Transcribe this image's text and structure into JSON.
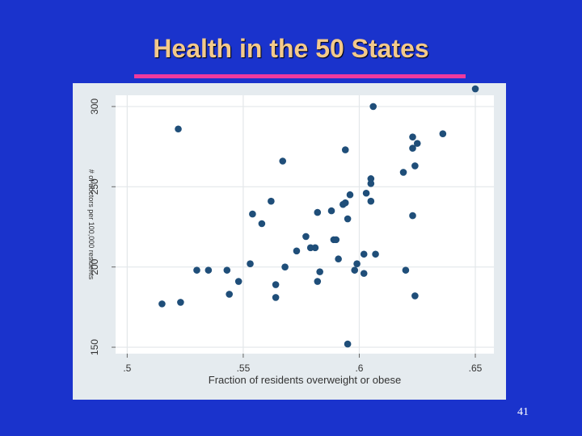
{
  "slide": {
    "title": "Health in the 50 States",
    "number": "41"
  },
  "colors": {
    "background": "#1a33cc",
    "title": "#f3c98b",
    "underline": "#ee3a9e",
    "plot_panel": "#e5ebef",
    "plot_area": "#ffffff",
    "marker": "#1f4e79",
    "grid": "#e3e7ea"
  },
  "chart_data": {
    "type": "scatter",
    "title": "",
    "xlabel": "Fraction of residents overweight or obese",
    "ylabel": "# of doctors per 100,000 residents",
    "xlim": [
      0.495,
      0.658
    ],
    "ylim": [
      146,
      307
    ],
    "x_ticks": [
      0.5,
      0.55,
      0.6,
      0.65
    ],
    "x_tick_labels": [
      ".5",
      ".55",
      ".6",
      ".65"
    ],
    "y_ticks": [
      150,
      200,
      250,
      300
    ],
    "y_tick_labels": [
      "150",
      "200",
      "250",
      "300"
    ],
    "grid": true,
    "points": [
      [
        0.515,
        177
      ],
      [
        0.522,
        286
      ],
      [
        0.523,
        178
      ],
      [
        0.53,
        198
      ],
      [
        0.535,
        198
      ],
      [
        0.543,
        198
      ],
      [
        0.544,
        183
      ],
      [
        0.548,
        191
      ],
      [
        0.553,
        202
      ],
      [
        0.554,
        233
      ],
      [
        0.558,
        227
      ],
      [
        0.562,
        241
      ],
      [
        0.564,
        189
      ],
      [
        0.564,
        181
      ],
      [
        0.567,
        266
      ],
      [
        0.568,
        200
      ],
      [
        0.573,
        210
      ],
      [
        0.577,
        219
      ],
      [
        0.579,
        212
      ],
      [
        0.581,
        212
      ],
      [
        0.582,
        234
      ],
      [
        0.582,
        191
      ],
      [
        0.583,
        197
      ],
      [
        0.588,
        235
      ],
      [
        0.589,
        217
      ],
      [
        0.59,
        217
      ],
      [
        0.591,
        205
      ],
      [
        0.593,
        239
      ],
      [
        0.594,
        273
      ],
      [
        0.594,
        240
      ],
      [
        0.595,
        230
      ],
      [
        0.596,
        245
      ],
      [
        0.595,
        152
      ],
      [
        0.598,
        198
      ],
      [
        0.599,
        202
      ],
      [
        0.602,
        208
      ],
      [
        0.602,
        196
      ],
      [
        0.603,
        246
      ],
      [
        0.605,
        252
      ],
      [
        0.605,
        255
      ],
      [
        0.605,
        241
      ],
      [
        0.606,
        300
      ],
      [
        0.607,
        208
      ],
      [
        0.619,
        259
      ],
      [
        0.62,
        198
      ],
      [
        0.623,
        281
      ],
      [
        0.623,
        274
      ],
      [
        0.623,
        232
      ],
      [
        0.624,
        263
      ],
      [
        0.625,
        277
      ],
      [
        0.624,
        182
      ],
      [
        0.636,
        283
      ],
      [
        0.65,
        311
      ]
    ]
  }
}
